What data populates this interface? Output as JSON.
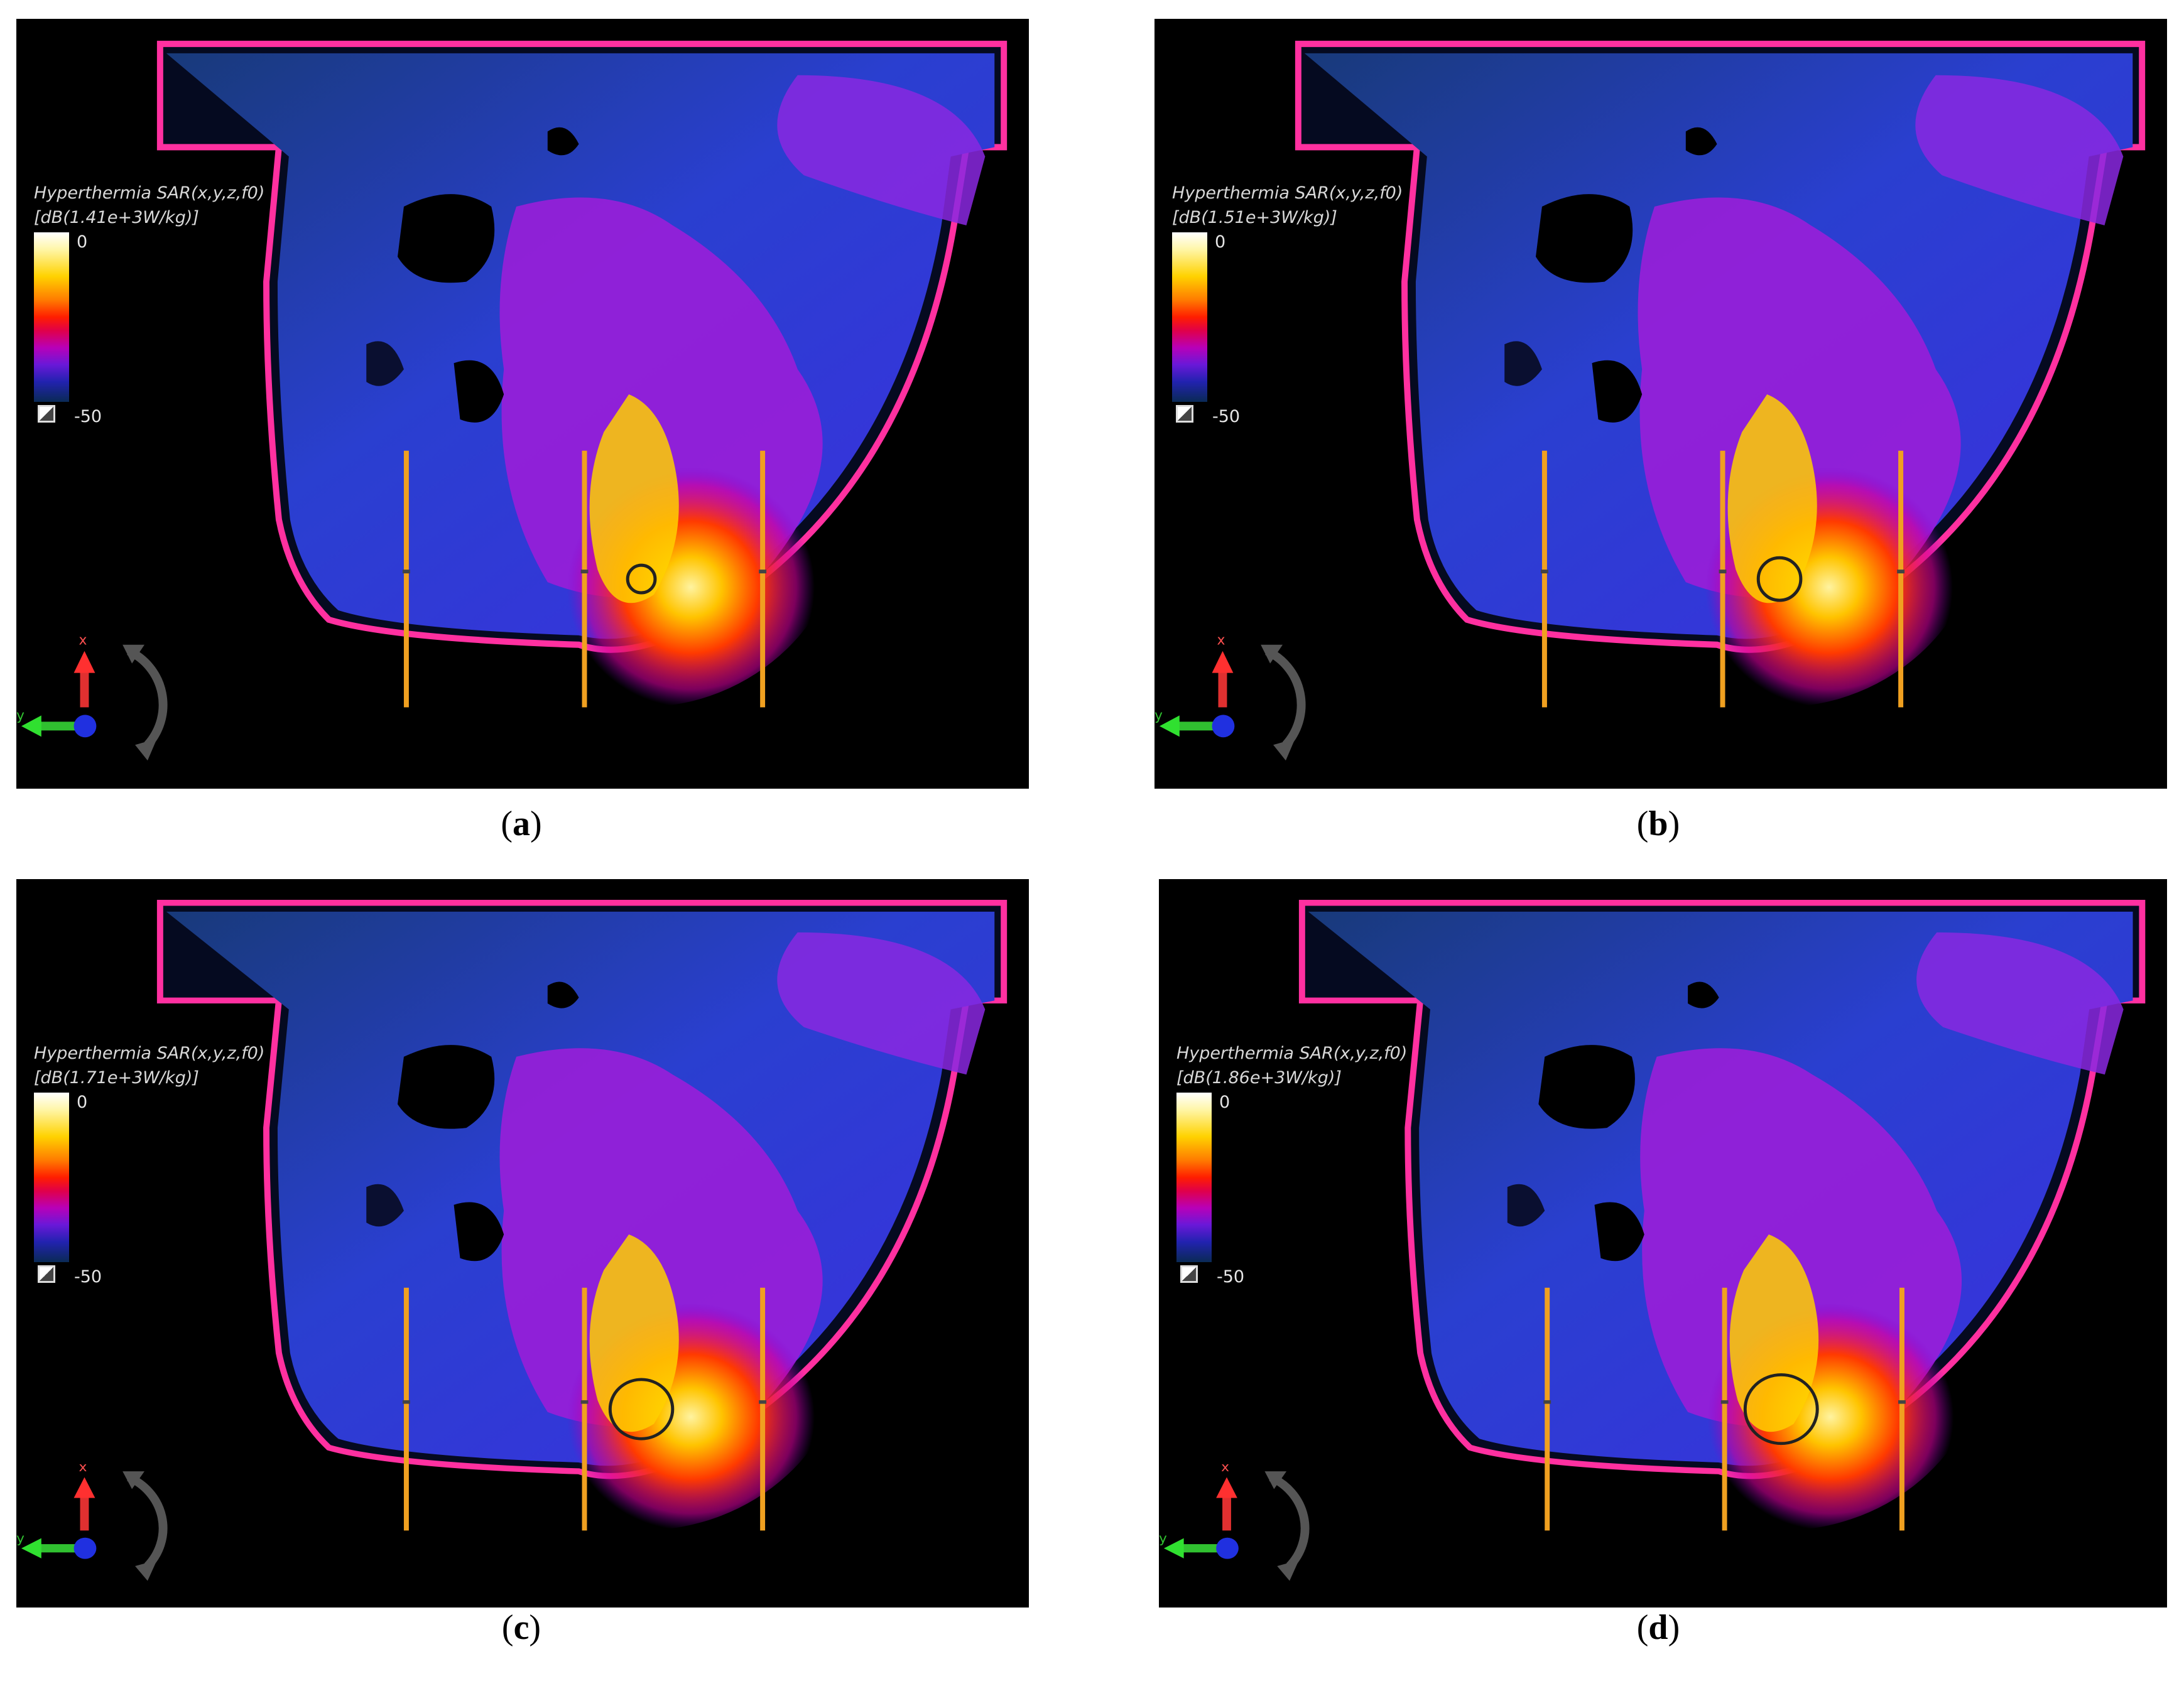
{
  "panels": [
    {
      "caption_open": "(",
      "caption_letter": "a",
      "caption_close": ")",
      "legend_title_line1": "Hyperthermia SAR(x,y,z,f0)",
      "legend_title_line2": "[dB(1.41e+3W/kg)]",
      "legend_max": "0",
      "legend_min": "-50"
    },
    {
      "caption_open": "(",
      "caption_letter": "b",
      "caption_close": ")",
      "legend_title_line1": "Hyperthermia SAR(x,y,z,f0)",
      "legend_title_line2": "[dB(1.51e+3W/kg)]",
      "legend_max": "0",
      "legend_min": "-50"
    },
    {
      "caption_open": "(",
      "caption_letter": "c",
      "caption_close": ")",
      "legend_title_line1": "Hyperthermia SAR(x,y,z,f0)",
      "legend_title_line2": "[dB(1.71e+3W/kg)]",
      "legend_max": "0",
      "legend_min": "-50"
    },
    {
      "caption_open": "(",
      "caption_letter": "d",
      "caption_close": ")",
      "legend_title_line1": "Hyperthermia SAR(x,y,z,f0)",
      "legend_title_line2": "[dB(1.86e+3W/kg)]",
      "legend_max": "0",
      "legend_min": "-50"
    }
  ],
  "axes_triad": {
    "x_label": "x",
    "y_label": "y"
  },
  "colors": {
    "background": "#000000",
    "tissue_low": "#2a3fd0",
    "tissue_mid": "#9a1ed8",
    "hotspot": "#ffd400",
    "antenna": "#f0a020"
  }
}
